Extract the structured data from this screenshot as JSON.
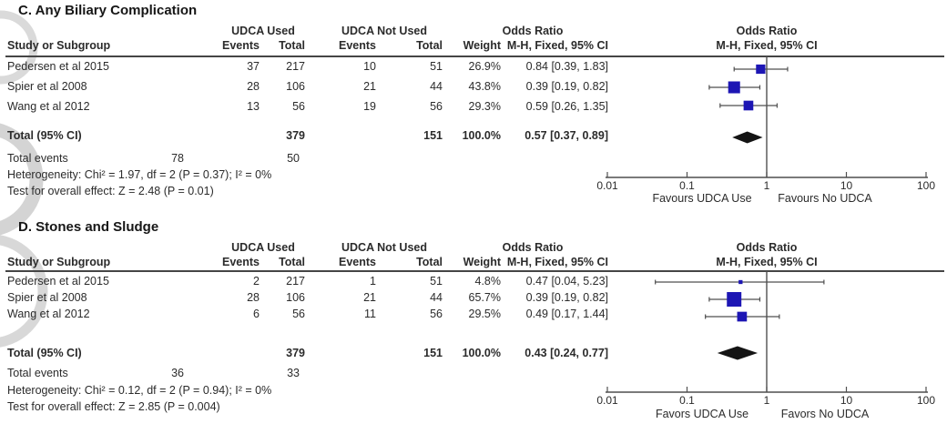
{
  "figure": {
    "background": "#ffffff",
    "watermark_color": "#d9d9d9"
  },
  "colors": {
    "marker_blue": "#1d16b4",
    "diamond_black": "#141414",
    "line_gray": "#4f4f4f",
    "text_dark": "#2b2b2b"
  },
  "chart_data": [
    {
      "type": "forest",
      "panel_label": "C. Any Biliary Complication",
      "effect_label": "Odds Ratio",
      "method_label": "M-H, Fixed, 95% CI",
      "columns": {
        "study": "Study or Subgroup",
        "group1": "UDCA Used",
        "group2": "UDCA Not Used",
        "events": "Events",
        "total": "Total",
        "weight": "Weight"
      },
      "studies": [
        {
          "name": "Pedersen et al 2015",
          "events1": "37",
          "total1": "217",
          "events2": "10",
          "total2": "51",
          "weight_label": "26.9%",
          "weight": 26.9,
          "or_label": "0.84 [0.39, 1.83]",
          "or": 0.84,
          "ci_low": 0.39,
          "ci_high": 1.83
        },
        {
          "name": "Spier et al 2008",
          "events1": "28",
          "total1": "106",
          "events2": "21",
          "total2": "44",
          "weight_label": "43.8%",
          "weight": 43.8,
          "or_label": "0.39 [0.19, 0.82]",
          "or": 0.39,
          "ci_low": 0.19,
          "ci_high": 0.82
        },
        {
          "name": "Wang et al 2012",
          "events1": "13",
          "total1": "56",
          "events2": "19",
          "total2": "56",
          "weight_label": "29.3%",
          "weight": 29.3,
          "or_label": "0.59 [0.26, 1.35]",
          "or": 0.59,
          "ci_low": 0.26,
          "ci_high": 1.35
        }
      ],
      "total_row": {
        "label": "Total (95% CI)",
        "total1": "379",
        "total2": "151",
        "weight_label": "100.0%",
        "or_label": "0.57 [0.37, 0.89]",
        "or": 0.57,
        "ci_low": 0.37,
        "ci_high": 0.89
      },
      "total_events": {
        "label": "Total events",
        "events1": "78",
        "events2": "50"
      },
      "heterogeneity": "Heterogeneity: Chi² = 1.97, df = 2 (P = 0.37); I² = 0%",
      "overall_effect": "Test for overall effect: Z = 2.48 (P = 0.01)",
      "axis": {
        "scale": "log",
        "min": 0.01,
        "max": 100,
        "tick_labels": [
          "0.01",
          "0.1",
          "1",
          "10",
          "100"
        ],
        "favours_left": "Favours UDCA Use",
        "favours_right": "Favours No UDCA"
      }
    },
    {
      "type": "forest",
      "panel_label": "D. Stones and Sludge",
      "effect_label": "Odds Ratio",
      "method_label": "M-H, Fixed, 95% CI",
      "columns": {
        "study": "Study or Subgroup",
        "group1": "UDCA Used",
        "group2": "UDCA Not Used",
        "events": "Events",
        "total": "Total",
        "weight": "Weight"
      },
      "studies": [
        {
          "name": "Pedersen et al 2015",
          "events1": "2",
          "total1": "217",
          "events2": "1",
          "total2": "51",
          "weight_label": "4.8%",
          "weight": 4.8,
          "or_label": "0.47 [0.04, 5.23]",
          "or": 0.47,
          "ci_low": 0.04,
          "ci_high": 5.23
        },
        {
          "name": "Spier et al 2008",
          "events1": "28",
          "total1": "106",
          "events2": "21",
          "total2": "44",
          "weight_label": "65.7%",
          "weight": 65.7,
          "or_label": "0.39 [0.19, 0.82]",
          "or": 0.39,
          "ci_low": 0.19,
          "ci_high": 0.82
        },
        {
          "name": "Wang et al 2012",
          "events1": "6",
          "total1": "56",
          "events2": "11",
          "total2": "56",
          "weight_label": "29.5%",
          "weight": 29.5,
          "or_label": "0.49 [0.17, 1.44]",
          "or": 0.49,
          "ci_low": 0.17,
          "ci_high": 1.44
        }
      ],
      "total_row": {
        "label": "Total (95% CI)",
        "total1": "379",
        "total2": "151",
        "weight_label": "100.0%",
        "or_label": "0.43 [0.24, 0.77]",
        "or": 0.43,
        "ci_low": 0.24,
        "ci_high": 0.77
      },
      "total_events": {
        "label": "Total events",
        "events1": "36",
        "events2": "33"
      },
      "heterogeneity": "Heterogeneity: Chi² = 0.12, df = 2 (P = 0.94); I² = 0%",
      "overall_effect": "Test for overall effect: Z = 2.85 (P = 0.004)",
      "axis": {
        "scale": "log",
        "min": 0.01,
        "max": 100,
        "tick_labels": [
          "0.01",
          "0.1",
          "1",
          "10",
          "100"
        ],
        "favours_left": "Favors UDCA Use",
        "favours_right": "Favors No UDCA"
      }
    }
  ]
}
